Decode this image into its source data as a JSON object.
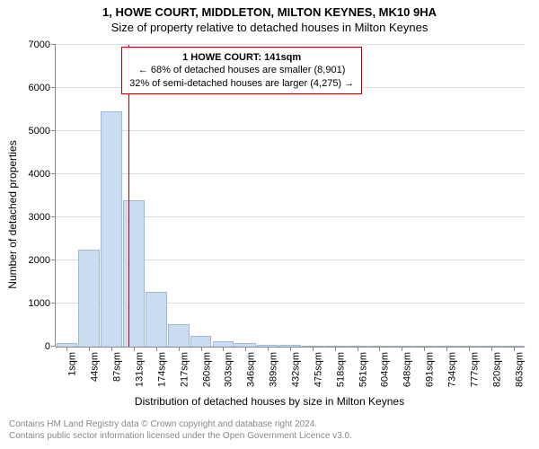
{
  "title_main": "1, HOWE COURT, MIDDLETON, MILTON KEYNES, MK10 9HA",
  "title_sub": "Size of property relative to detached houses in Milton Keynes",
  "chart": {
    "type": "histogram",
    "ylabel": "Number of detached properties",
    "xlabel": "Distribution of detached houses by size in Milton Keynes",
    "ylim": [
      0,
      7000
    ],
    "ytick_step": 1000,
    "yticks": [
      0,
      1000,
      2000,
      3000,
      4000,
      5000,
      6000,
      7000
    ],
    "xtick_labels": [
      "1sqm",
      "44sqm",
      "87sqm",
      "131sqm",
      "174sqm",
      "217sqm",
      "260sqm",
      "303sqm",
      "346sqm",
      "389sqm",
      "432sqm",
      "475sqm",
      "518sqm",
      "561sqm",
      "604sqm",
      "648sqm",
      "691sqm",
      "734sqm",
      "777sqm",
      "820sqm",
      "863sqm"
    ],
    "bars": [
      {
        "x": 22,
        "count": 80
      },
      {
        "x": 65,
        "count": 2250
      },
      {
        "x": 109,
        "count": 5450
      },
      {
        "x": 152,
        "count": 3400
      },
      {
        "x": 195,
        "count": 1280
      },
      {
        "x": 239,
        "count": 520
      },
      {
        "x": 282,
        "count": 260
      },
      {
        "x": 325,
        "count": 130
      },
      {
        "x": 368,
        "count": 85
      },
      {
        "x": 411,
        "count": 50
      },
      {
        "x": 454,
        "count": 35
      },
      {
        "x": 497,
        "count": 20
      },
      {
        "x": 540,
        "count": 15
      },
      {
        "x": 583,
        "count": 10
      },
      {
        "x": 626,
        "count": 8
      },
      {
        "x": 669,
        "count": 6
      },
      {
        "x": 712,
        "count": 5
      },
      {
        "x": 755,
        "count": 4
      },
      {
        "x": 798,
        "count": 3
      },
      {
        "x": 841,
        "count": 2
      },
      {
        "x": 885,
        "count": 2
      }
    ],
    "x_range": [
      1,
      906
    ],
    "bar_fill": "#c9dcf0",
    "bar_stroke": "#9abbe0",
    "grid_color": "#dddddd",
    "axis_color": "#888888",
    "background": "#ffffff",
    "reference_line": {
      "x": 141,
      "color": "#c00000",
      "width": 1
    },
    "callout": {
      "border_color": "#c00000",
      "title": "1 HOWE COURT: 141sqm",
      "line2": "← 68% of detached houses are smaller (8,901)",
      "line3": "32% of semi-detached houses are larger (4,275) →"
    }
  },
  "footer": {
    "line1": "Contains HM Land Registry data © Crown copyright and database right 2024.",
    "line2": "Contains public sector information licensed under the Open Government Licence v3.0."
  }
}
